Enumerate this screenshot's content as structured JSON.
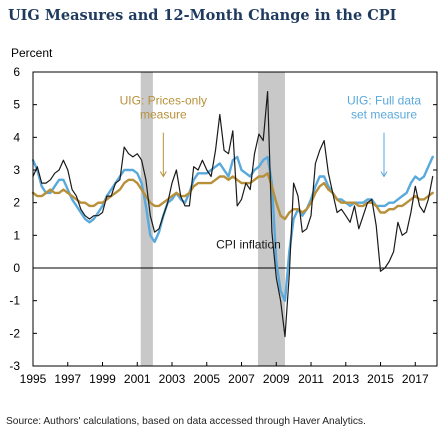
{
  "title": "UIG Measures and 12-Month Change in the CPI",
  "source": "Source: Authors' calculations, based on data accessed through Haver Analytics.",
  "colors": {
    "cpi": "#1a1a1a",
    "uig_prices_only": "#b8903a",
    "uig_full_data": "#5aa9dc",
    "recession": "#c8c8c8",
    "annotation_gold": "#b8903a",
    "annotation_blue": "#5aa9dc"
  },
  "chart_data": {
    "type": "line",
    "title": "UIG Measures and 12-Month Change in the CPI",
    "ylabel": "Percent",
    "xlabel": "",
    "xlim": [
      1995.0,
      2018.25
    ],
    "ylim": [
      -3,
      6
    ],
    "yticks": [
      -3,
      -2,
      -1,
      0,
      1,
      2,
      3,
      4,
      5,
      6
    ],
    "xticks": [
      1995,
      1997,
      1999,
      2001,
      2003,
      2005,
      2007,
      2009,
      2011,
      2013,
      2015,
      2017
    ],
    "recessions": [
      [
        2001.2,
        2001.9
      ],
      [
        2007.95,
        2009.5
      ]
    ],
    "annotations": [
      {
        "lines": [
          "UIG: Prices-only",
          "measure"
        ],
        "x": 2002.5,
        "y": 5.0,
        "color_key": "annotation_gold",
        "arrow_to": [
          2002.5,
          2.8
        ]
      },
      {
        "lines": [
          "UIG: Full data",
          "set measure"
        ],
        "x": 2015.2,
        "y": 5.0,
        "color_key": "annotation_blue",
        "arrow_to": [
          2015.2,
          2.8
        ]
      },
      {
        "lines": [
          "CPI inflation"
        ],
        "x": 2007.4,
        "y": 0.6,
        "color_key": "cpi",
        "arrow_to": null
      }
    ],
    "series": [
      {
        "name": "CPI inflation",
        "color_key": "cpi",
        "x": [
          1995.0,
          1995.25,
          1995.5,
          1995.75,
          1996.0,
          1996.25,
          1996.5,
          1996.75,
          1997.0,
          1997.25,
          1997.5,
          1997.75,
          1998.0,
          1998.25,
          1998.5,
          1998.75,
          1999.0,
          1999.25,
          1999.5,
          1999.75,
          2000.0,
          2000.25,
          2000.5,
          2000.75,
          2001.0,
          2001.25,
          2001.5,
          2001.75,
          2002.0,
          2002.25,
          2002.5,
          2002.75,
          2003.0,
          2003.25,
          2003.5,
          2003.75,
          2004.0,
          2004.25,
          2004.5,
          2004.75,
          2005.0,
          2005.25,
          2005.5,
          2005.75,
          2006.0,
          2006.25,
          2006.5,
          2006.75,
          2007.0,
          2007.25,
          2007.5,
          2007.75,
          2008.0,
          2008.25,
          2008.5,
          2008.75,
          2009.0,
          2009.25,
          2009.5,
          2009.75,
          2010.0,
          2010.25,
          2010.5,
          2010.75,
          2011.0,
          2011.25,
          2011.5,
          2011.75,
          2012.0,
          2012.25,
          2012.5,
          2012.75,
          2013.0,
          2013.25,
          2013.5,
          2013.75,
          2014.0,
          2014.25,
          2014.5,
          2014.75,
          2015.0,
          2015.25,
          2015.5,
          2015.75,
          2016.0,
          2016.25,
          2016.5,
          2016.75,
          2017.0,
          2017.25,
          2017.5,
          2017.75,
          2018.0
        ],
        "values": [
          2.8,
          3.1,
          2.6,
          2.6,
          2.7,
          2.9,
          3.0,
          3.3,
          3.0,
          2.4,
          2.2,
          1.8,
          1.6,
          1.5,
          1.6,
          1.6,
          1.7,
          2.2,
          2.2,
          2.6,
          2.7,
          3.7,
          3.5,
          3.4,
          3.5,
          3.3,
          2.7,
          1.6,
          1.1,
          1.2,
          1.6,
          2.0,
          2.6,
          3.0,
          2.2,
          1.9,
          1.9,
          3.1,
          3.0,
          3.3,
          3.0,
          2.8,
          3.6,
          4.7,
          3.6,
          3.5,
          4.2,
          1.9,
          2.1,
          2.6,
          2.4,
          3.5,
          4.1,
          3.9,
          5.4,
          1.1,
          -0.3,
          -1.0,
          -2.1,
          -0.2,
          2.6,
          2.2,
          1.1,
          1.2,
          1.6,
          3.2,
          3.6,
          3.9,
          2.9,
          2.3,
          1.7,
          1.8,
          1.6,
          1.4,
          1.9,
          1.2,
          1.6,
          2.0,
          2.1,
          1.3,
          -0.1,
          0.0,
          0.2,
          0.5,
          1.4,
          1.0,
          1.1,
          1.7,
          2.5,
          1.9,
          1.7,
          2.1,
          2.8
        ]
      },
      {
        "name": "UIG: Prices-only measure",
        "color_key": "uig_prices_only",
        "x": [
          1995.0,
          1995.25,
          1995.5,
          1995.75,
          1996.0,
          1996.25,
          1996.5,
          1996.75,
          1997.0,
          1997.25,
          1997.5,
          1997.75,
          1998.0,
          1998.25,
          1998.5,
          1998.75,
          1999.0,
          1999.25,
          1999.5,
          1999.75,
          2000.0,
          2000.25,
          2000.5,
          2000.75,
          2001.0,
          2001.25,
          2001.5,
          2001.75,
          2002.0,
          2002.25,
          2002.5,
          2002.75,
          2003.0,
          2003.25,
          2003.5,
          2003.75,
          2004.0,
          2004.25,
          2004.5,
          2004.75,
          2005.0,
          2005.25,
          2005.5,
          2005.75,
          2006.0,
          2006.25,
          2006.5,
          2006.75,
          2007.0,
          2007.25,
          2007.5,
          2007.75,
          2008.0,
          2008.25,
          2008.5,
          2008.75,
          2009.0,
          2009.25,
          2009.5,
          2009.75,
          2010.0,
          2010.25,
          2010.5,
          2010.75,
          2011.0,
          2011.25,
          2011.5,
          2011.75,
          2012.0,
          2012.25,
          2012.5,
          2012.75,
          2013.0,
          2013.25,
          2013.5,
          2013.75,
          2014.0,
          2014.25,
          2014.5,
          2014.75,
          2015.0,
          2015.25,
          2015.5,
          2015.75,
          2016.0,
          2016.25,
          2016.5,
          2016.75,
          2017.0,
          2017.25,
          2017.5,
          2017.75,
          2018.0
        ],
        "values": [
          2.3,
          2.2,
          2.2,
          2.3,
          2.4,
          2.3,
          2.3,
          2.4,
          2.3,
          2.2,
          2.1,
          2.0,
          2.0,
          1.9,
          1.9,
          2.0,
          2.0,
          2.1,
          2.2,
          2.3,
          2.4,
          2.6,
          2.7,
          2.7,
          2.6,
          2.4,
          2.2,
          2.0,
          1.9,
          1.9,
          2.0,
          2.1,
          2.2,
          2.3,
          2.2,
          2.2,
          2.3,
          2.5,
          2.6,
          2.6,
          2.6,
          2.6,
          2.7,
          2.8,
          2.8,
          2.7,
          2.8,
          2.7,
          2.6,
          2.6,
          2.6,
          2.7,
          2.8,
          2.8,
          2.9,
          2.5,
          2.0,
          1.6,
          1.5,
          1.7,
          1.8,
          1.8,
          1.7,
          1.8,
          2.0,
          2.3,
          2.5,
          2.6,
          2.4,
          2.3,
          2.1,
          2.0,
          2.0,
          2.0,
          2.0,
          1.9,
          1.9,
          2.0,
          2.0,
          1.9,
          1.7,
          1.7,
          1.8,
          1.8,
          1.9,
          1.9,
          2.0,
          2.1,
          2.2,
          2.1,
          2.1,
          2.2,
          2.3
        ]
      },
      {
        "name": "UIG: Full data set measure",
        "color_key": "uig_full_data",
        "x": [
          1995.0,
          1995.25,
          1995.5,
          1995.75,
          1996.0,
          1996.25,
          1996.5,
          1996.75,
          1997.0,
          1997.25,
          1997.5,
          1997.75,
          1998.0,
          1998.25,
          1998.5,
          1998.75,
          1999.0,
          1999.25,
          1999.5,
          1999.75,
          2000.0,
          2000.25,
          2000.5,
          2000.75,
          2001.0,
          2001.25,
          2001.5,
          2001.75,
          2002.0,
          2002.25,
          2002.5,
          2002.75,
          2003.0,
          2003.25,
          2003.5,
          2003.75,
          2004.0,
          2004.25,
          2004.5,
          2004.75,
          2005.0,
          2005.25,
          2005.5,
          2005.75,
          2006.0,
          2006.25,
          2006.5,
          2006.75,
          2007.0,
          2007.25,
          2007.5,
          2007.75,
          2008.0,
          2008.25,
          2008.5,
          2008.75,
          2009.0,
          2009.25,
          2009.5,
          2009.75,
          2010.0,
          2010.25,
          2010.5,
          2010.75,
          2011.0,
          2011.25,
          2011.5,
          2011.75,
          2012.0,
          2012.25,
          2012.5,
          2012.75,
          2013.0,
          2013.25,
          2013.5,
          2013.75,
          2014.0,
          2014.25,
          2014.5,
          2014.75,
          2015.0,
          2015.25,
          2015.5,
          2015.75,
          2016.0,
          2016.25,
          2016.5,
          2016.75,
          2017.0,
          2017.25,
          2017.5,
          2017.75,
          2018.0
        ],
        "values": [
          3.3,
          3.0,
          2.5,
          2.3,
          2.3,
          2.5,
          2.7,
          2.7,
          2.4,
          2.1,
          1.9,
          1.7,
          1.5,
          1.4,
          1.5,
          1.7,
          1.9,
          2.2,
          2.4,
          2.6,
          2.8,
          3.0,
          3.0,
          3.0,
          2.9,
          2.6,
          1.9,
          1.0,
          0.8,
          1.1,
          1.6,
          2.0,
          2.1,
          2.3,
          2.1,
          2.0,
          2.3,
          2.7,
          2.9,
          2.9,
          2.9,
          3.0,
          3.1,
          3.2,
          3.0,
          2.8,
          3.3,
          3.4,
          3.0,
          2.9,
          2.8,
          3.0,
          3.1,
          3.3,
          3.4,
          2.6,
          0.2,
          -0.7,
          -1.0,
          0.5,
          1.5,
          1.8,
          1.6,
          1.8,
          2.1,
          2.5,
          2.8,
          2.8,
          2.5,
          2.3,
          2.1,
          2.1,
          2.0,
          1.9,
          2.0,
          2.0,
          2.0,
          2.1,
          2.1,
          1.9,
          1.9,
          1.9,
          2.0,
          2.0,
          2.1,
          2.2,
          2.3,
          2.6,
          2.8,
          2.7,
          2.8,
          3.1,
          3.4
        ]
      }
    ]
  }
}
